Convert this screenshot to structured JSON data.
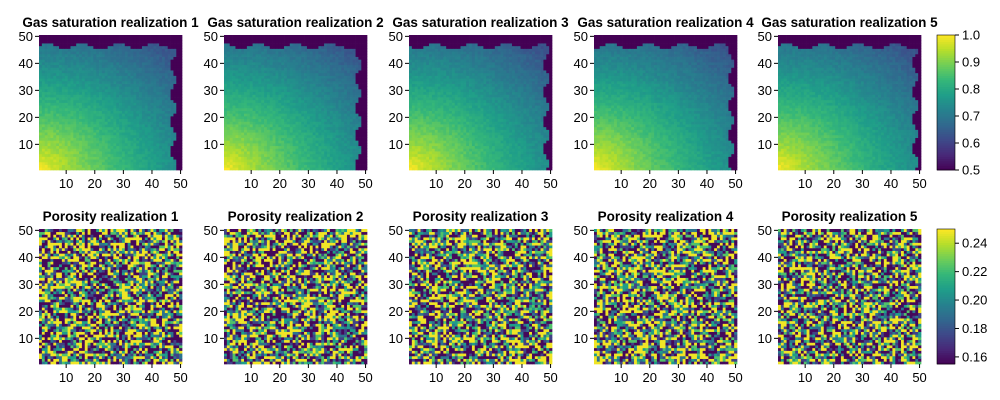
{
  "chart_data": {
    "type": "heatmap",
    "colormap": "viridis",
    "colormap_stops": [
      "#440154",
      "#482878",
      "#3e4989",
      "#31688e",
      "#26828e",
      "#1f9e89",
      "#35b779",
      "#6ece58",
      "#b5de2b",
      "#fde725"
    ],
    "rows": [
      {
        "name": "gas-saturation",
        "clim": [
          0.5,
          1.0
        ],
        "colorbar_ticks": [
          "0.5",
          "0.6",
          "0.7",
          "0.8",
          "0.9",
          "1.0"
        ],
        "panels": [
          {
            "title": "Gas saturation realization 1"
          },
          {
            "title": "Gas saturation realization 2"
          },
          {
            "title": "Gas saturation realization 3"
          },
          {
            "title": "Gas saturation realization 4"
          },
          {
            "title": "Gas saturation realization 5"
          }
        ]
      },
      {
        "name": "porosity",
        "clim": [
          0.155,
          0.25
        ],
        "colorbar_ticks": [
          "0.16",
          "0.18",
          "0.20",
          "0.22",
          "0.24"
        ],
        "panels": [
          {
            "title": "Porosity realization 1"
          },
          {
            "title": "Porosity realization 2"
          },
          {
            "title": "Porosity realization 3"
          },
          {
            "title": "Porosity realization 4"
          },
          {
            "title": "Porosity realization 5"
          }
        ]
      }
    ],
    "grid_size": [
      50,
      50
    ],
    "xlim": [
      0.5,
      50.5
    ],
    "ylim": [
      0.5,
      50.5
    ],
    "xticks": [
      "10",
      "20",
      "30",
      "40",
      "50"
    ],
    "yticks": [
      "10",
      "20",
      "30",
      "40",
      "50"
    ]
  }
}
